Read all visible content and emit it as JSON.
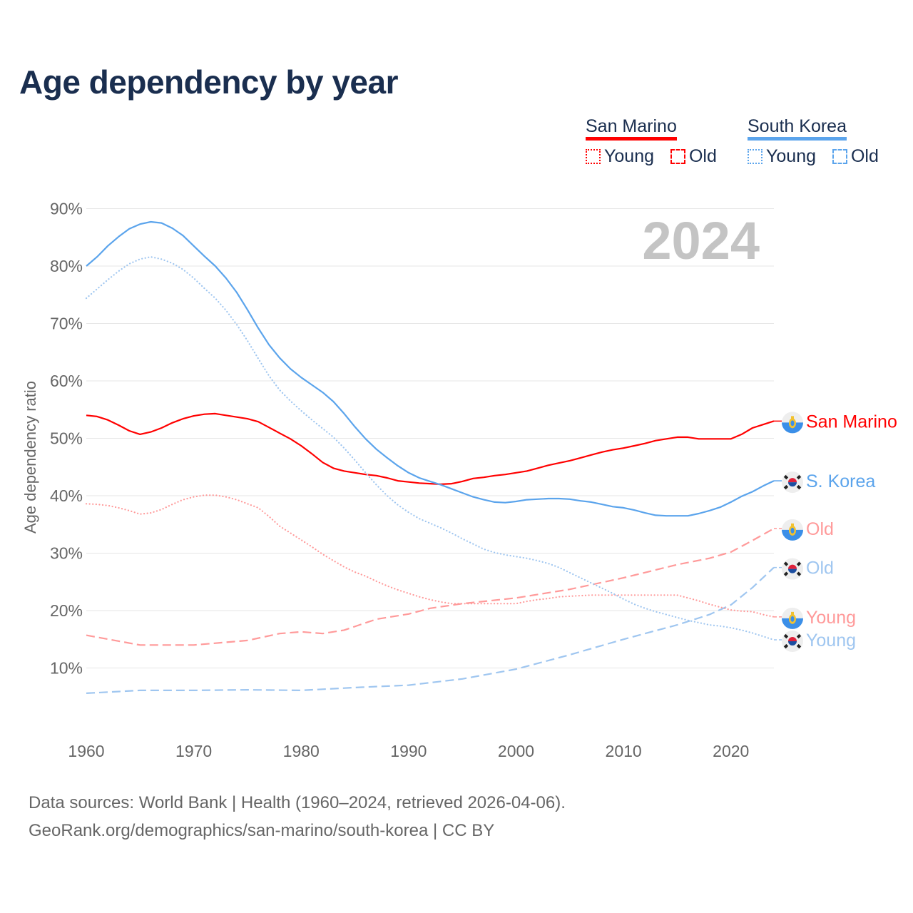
{
  "title": "Age dependency by year",
  "legend": {
    "groups": [
      {
        "name": "San Marino",
        "color": "#ff0000",
        "light": "#ff9a9a",
        "items": [
          "Young",
          "Old"
        ]
      },
      {
        "name": "South Korea",
        "color": "#5ba4ec",
        "light": "#9fc6f0",
        "items": [
          "Young",
          "Old"
        ]
      }
    ]
  },
  "year_badge": "2024",
  "footer": {
    "line1": "Data sources: World Bank | Health (1960–2024, retrieved 2026-04-06).",
    "line2": "GeoRank.org/demographics/san-marino/south-korea | CC BY"
  },
  "chart_data": {
    "type": "line",
    "title": "Age dependency by year",
    "xlabel": "",
    "ylabel": "Age dependency ratio",
    "xlim": [
      1960,
      2024
    ],
    "ylim": [
      0,
      90
    ],
    "xticks": [
      1960,
      1970,
      1980,
      1990,
      2000,
      2010,
      2020
    ],
    "xtick_labels": [
      "1960",
      "1970",
      "1980",
      "1990",
      "2000",
      "2010",
      "2020"
    ],
    "yticks": [
      10,
      20,
      30,
      40,
      50,
      60,
      70,
      80,
      90
    ],
    "ytick_labels": [
      "10%",
      "20%",
      "30%",
      "40%",
      "50%",
      "60%",
      "70%",
      "80%",
      "90%"
    ],
    "grid": true,
    "legend_position": "top-right",
    "series": [
      {
        "name": "San Marino",
        "end_label": "San Marino",
        "country": "san-marino",
        "color": "#ff0000",
        "style": "solid",
        "start_year": 1960,
        "values": [
          54.0,
          53.8,
          53.2,
          52.3,
          51.3,
          50.7,
          51.1,
          51.8,
          52.7,
          53.4,
          53.9,
          54.2,
          54.3,
          54.0,
          53.7,
          53.4,
          52.9,
          51.9,
          50.9,
          49.9,
          48.7,
          47.3,
          45.8,
          44.8,
          44.3,
          44.0,
          43.7,
          43.5,
          43.1,
          42.6,
          42.4,
          42.2,
          42.1,
          42.0,
          42.1,
          42.5,
          43.0,
          43.2,
          43.5,
          43.7,
          44.0,
          44.3,
          44.8,
          45.3,
          45.7,
          46.1,
          46.6,
          47.1,
          47.6,
          48.0,
          48.3,
          48.7,
          49.1,
          49.6,
          49.9,
          50.2,
          50.2,
          49.9,
          49.9,
          49.9,
          49.9,
          50.7,
          51.8,
          52.4,
          53.0
        ]
      },
      {
        "name": "South Korea",
        "end_label": "S. Korea",
        "country": "south-korea",
        "color": "#5ba4ec",
        "style": "solid",
        "start_year": 1960,
        "values": [
          80.0,
          81.6,
          83.5,
          85.1,
          86.5,
          87.3,
          87.7,
          87.5,
          86.6,
          85.3,
          83.5,
          81.7,
          80.0,
          77.9,
          75.4,
          72.4,
          69.2,
          66.3,
          64.0,
          62.1,
          60.6,
          59.3,
          58.0,
          56.4,
          54.3,
          52.0,
          49.9,
          48.1,
          46.6,
          45.2,
          44.0,
          43.1,
          42.5,
          41.9,
          41.2,
          40.5,
          39.8,
          39.3,
          38.9,
          38.8,
          39.0,
          39.3,
          39.4,
          39.5,
          39.5,
          39.4,
          39.1,
          38.9,
          38.5,
          38.1,
          37.9,
          37.5,
          37.0,
          36.6,
          36.5,
          36.5,
          36.5,
          36.9,
          37.4,
          38.0,
          38.9,
          39.9,
          40.7,
          41.7,
          42.6
        ]
      },
      {
        "name": "San Marino Old",
        "end_label": "Old",
        "country": "san-marino",
        "color": "#ff9a9a",
        "style": "dashed",
        "start_year": 1960,
        "step": 1,
        "points": [
          [
            1960,
            15.7
          ],
          [
            1965,
            14.0
          ],
          [
            1970,
            14.0
          ],
          [
            1975,
            14.8
          ],
          [
            1978,
            16.0
          ],
          [
            1980,
            16.3
          ],
          [
            1982,
            16.0
          ],
          [
            1984,
            16.6
          ],
          [
            1987,
            18.5
          ],
          [
            1990,
            19.4
          ],
          [
            1992,
            20.4
          ],
          [
            1995,
            21.2
          ],
          [
            2000,
            22.2
          ],
          [
            2005,
            23.7
          ],
          [
            2010,
            25.7
          ],
          [
            2015,
            28.0
          ],
          [
            2018,
            29.1
          ],
          [
            2020,
            30.2
          ],
          [
            2022,
            32.2
          ],
          [
            2024,
            34.3
          ]
        ]
      },
      {
        "name": "South Korea Old",
        "end_label": "Old",
        "country": "south-korea",
        "color": "#9fc6f0",
        "style": "dashed",
        "points": [
          [
            1960,
            5.6
          ],
          [
            1965,
            6.1
          ],
          [
            1970,
            6.1
          ],
          [
            1975,
            6.2
          ],
          [
            1980,
            6.1
          ],
          [
            1985,
            6.6
          ],
          [
            1990,
            7.0
          ],
          [
            1995,
            8.1
          ],
          [
            2000,
            9.8
          ],
          [
            2005,
            12.3
          ],
          [
            2010,
            15.0
          ],
          [
            2015,
            17.5
          ],
          [
            2018,
            19.3
          ],
          [
            2020,
            21.0
          ],
          [
            2022,
            24.0
          ],
          [
            2024,
            27.5
          ]
        ]
      },
      {
        "name": "San Marino Young",
        "end_label": "Young",
        "country": "san-marino",
        "color": "#ff9a9a",
        "style": "dotted",
        "start_year": 1960,
        "values": [
          38.6,
          38.5,
          38.3,
          37.9,
          37.4,
          36.8,
          37.0,
          37.6,
          38.5,
          39.3,
          39.8,
          40.1,
          40.1,
          39.8,
          39.3,
          38.6,
          37.9,
          36.4,
          34.7,
          33.5,
          32.3,
          31.1,
          29.8,
          28.7,
          27.6,
          26.7,
          26.0,
          25.1,
          24.3,
          23.6,
          23.0,
          22.4,
          21.9,
          21.5,
          21.2,
          21.2,
          21.2,
          21.2,
          21.2,
          21.2,
          21.2,
          21.6,
          21.9,
          22.1,
          22.4,
          22.5,
          22.6,
          22.7,
          22.7,
          22.7,
          22.7,
          22.7,
          22.7,
          22.7,
          22.7,
          22.7,
          22.2,
          21.7,
          21.1,
          20.6,
          20.1,
          19.9,
          19.8,
          19.3,
          18.9
        ]
      },
      {
        "name": "South Korea Young",
        "end_label": "Young",
        "country": "south-korea",
        "color": "#9fc6f0",
        "style": "dotted",
        "start_year": 1960,
        "values": [
          74.4,
          76.0,
          77.6,
          79.1,
          80.4,
          81.2,
          81.6,
          81.2,
          80.5,
          79.4,
          77.9,
          76.1,
          74.4,
          72.3,
          69.8,
          67.0,
          63.9,
          60.9,
          58.4,
          56.5,
          54.8,
          53.2,
          51.7,
          50.2,
          48.3,
          46.2,
          44.0,
          41.9,
          40.0,
          38.4,
          37.1,
          36.0,
          35.2,
          34.4,
          33.5,
          32.5,
          31.6,
          30.7,
          30.1,
          29.7,
          29.4,
          29.1,
          28.7,
          28.2,
          27.5,
          26.6,
          25.7,
          24.8,
          23.9,
          23.0,
          22.0,
          21.1,
          20.4,
          19.8,
          19.3,
          18.8,
          18.3,
          17.9,
          17.5,
          17.3,
          17.0,
          16.6,
          16.1,
          15.5,
          14.9
        ]
      }
    ]
  }
}
